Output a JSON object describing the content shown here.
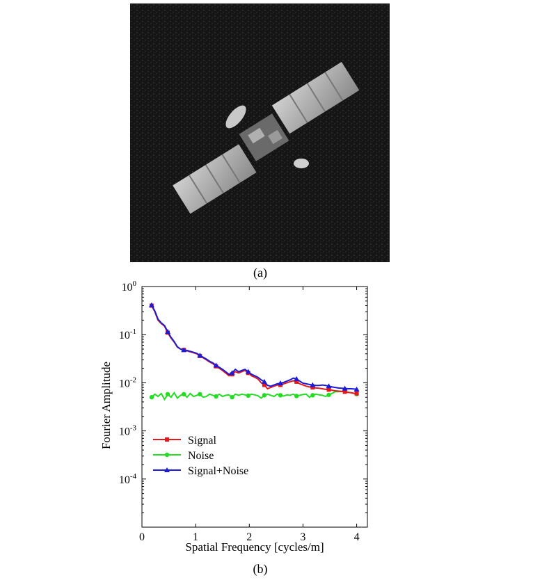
{
  "panel_a": {
    "caption": "(a)",
    "image": {
      "subject": "satellite-radar-image"
    }
  },
  "panel_b": {
    "caption": "(b)"
  },
  "colors": {
    "signal": "#e31a1c",
    "noise": "#22dd22",
    "signal_noise": "#1a1adb",
    "image_background": "#111111"
  },
  "chart_data": {
    "type": "line",
    "title": "",
    "xlabel": "Spatial Frequency [cycles/m]",
    "ylabel": "Fourier Amplitude",
    "xlim": [
      0,
      4.2
    ],
    "ylim": [
      1e-05,
      1
    ],
    "yscale": "log",
    "grid": false,
    "legend_position": "bottom-left",
    "x_ticks": [
      "0",
      "1",
      "2",
      "3",
      "4"
    ],
    "x_tick_values": [
      0,
      1,
      2,
      3,
      4
    ],
    "y_ticks": [
      {
        "base": "10",
        "exp": "0"
      },
      {
        "base": "10",
        "exp": "-1"
      },
      {
        "base": "10",
        "exp": "-2"
      },
      {
        "base": "10",
        "exp": "-3"
      },
      {
        "base": "10",
        "exp": "-4"
      }
    ],
    "y_tick_values": [
      1,
      0.1,
      0.01,
      0.001,
      0.0001
    ],
    "series": [
      {
        "name": "Signal",
        "color": "#e31a1c",
        "marker": "square",
        "x": [
          0.18,
          0.24,
          0.3,
          0.36,
          0.42,
          0.48,
          0.54,
          0.6,
          0.66,
          0.72,
          0.78,
          0.84,
          0.9,
          0.96,
          1.02,
          1.08,
          1.14,
          1.2,
          1.26,
          1.32,
          1.38,
          1.44,
          1.5,
          1.56,
          1.62,
          1.68,
          1.74,
          1.8,
          1.86,
          1.92,
          1.98,
          2.04,
          2.1,
          2.16,
          2.22,
          2.28,
          2.34,
          2.4,
          2.46,
          2.52,
          2.58,
          2.64,
          2.7,
          2.76,
          2.82,
          2.88,
          2.94,
          3.0,
          3.06,
          3.12,
          3.18,
          3.24,
          3.3,
          3.36,
          3.42,
          3.48,
          3.54,
          3.6,
          3.66,
          3.72,
          3.78,
          3.84,
          3.9,
          3.96,
          4.0
        ],
        "y": [
          0.4,
          0.3,
          0.2,
          0.17,
          0.15,
          0.11,
          0.085,
          0.07,
          0.055,
          0.05,
          0.048,
          0.046,
          0.044,
          0.042,
          0.04,
          0.036,
          0.033,
          0.03,
          0.027,
          0.025,
          0.022,
          0.02,
          0.018,
          0.016,
          0.014,
          0.015,
          0.017,
          0.016,
          0.017,
          0.018,
          0.016,
          0.014,
          0.013,
          0.012,
          0.01,
          0.009,
          0.0075,
          0.008,
          0.0085,
          0.009,
          0.009,
          0.0095,
          0.01,
          0.0105,
          0.011,
          0.0105,
          0.0095,
          0.009,
          0.0085,
          0.0082,
          0.008,
          0.0078,
          0.0077,
          0.0075,
          0.0073,
          0.0072,
          0.007,
          0.0068,
          0.0067,
          0.0066,
          0.0065,
          0.0063,
          0.0062,
          0.006,
          0.006
        ]
      },
      {
        "name": "Noise",
        "color": "#22dd22",
        "marker": "circle",
        "x": [
          0.18,
          0.24,
          0.3,
          0.36,
          0.42,
          0.48,
          0.54,
          0.6,
          0.66,
          0.72,
          0.78,
          0.84,
          0.9,
          0.96,
          1.02,
          1.08,
          1.14,
          1.2,
          1.26,
          1.32,
          1.38,
          1.44,
          1.5,
          1.56,
          1.62,
          1.68,
          1.74,
          1.8,
          1.86,
          1.92,
          1.98,
          2.04,
          2.1,
          2.16,
          2.22,
          2.28,
          2.34,
          2.4,
          2.46,
          2.52,
          2.58,
          2.64,
          2.7,
          2.76,
          2.82,
          2.88,
          2.94,
          3.0,
          3.06,
          3.12,
          3.18,
          3.24,
          3.3,
          3.36,
          3.42,
          3.48,
          3.54,
          3.6,
          3.66,
          3.72,
          3.78,
          3.84,
          3.9,
          3.96,
          4.0
        ],
        "y": [
          0.005,
          0.0058,
          0.0052,
          0.006,
          0.0045,
          0.0058,
          0.005,
          0.0062,
          0.0048,
          0.0055,
          0.0058,
          0.005,
          0.006,
          0.0052,
          0.0055,
          0.0058,
          0.005,
          0.0052,
          0.0058,
          0.0055,
          0.0052,
          0.0058,
          0.0052,
          0.0055,
          0.0056,
          0.005,
          0.0058,
          0.0055,
          0.0058,
          0.0056,
          0.0054,
          0.0058,
          0.0056,
          0.0054,
          0.0048,
          0.0055,
          0.0058,
          0.0055,
          0.0052,
          0.0058,
          0.0055,
          0.0053,
          0.0056,
          0.0055,
          0.0058,
          0.0053,
          0.0055,
          0.0057,
          0.0058,
          0.005,
          0.0055,
          0.0058,
          0.0056,
          0.0055,
          0.0052,
          0.0056,
          0.006,
          0.0065,
          0.0065,
          0.0066,
          0.0066,
          0.0064,
          0.0062,
          0.006,
          0.0058
        ]
      },
      {
        "name": "Signal+Noise",
        "color": "#1a1adb",
        "marker": "triangle",
        "x": [
          0.18,
          0.24,
          0.3,
          0.36,
          0.42,
          0.48,
          0.54,
          0.6,
          0.66,
          0.72,
          0.78,
          0.84,
          0.9,
          0.96,
          1.02,
          1.08,
          1.14,
          1.2,
          1.26,
          1.32,
          1.38,
          1.44,
          1.5,
          1.56,
          1.62,
          1.68,
          1.74,
          1.8,
          1.86,
          1.92,
          1.98,
          2.04,
          2.1,
          2.16,
          2.22,
          2.28,
          2.34,
          2.4,
          2.46,
          2.52,
          2.58,
          2.64,
          2.7,
          2.76,
          2.82,
          2.88,
          2.94,
          3.0,
          3.06,
          3.12,
          3.18,
          3.24,
          3.3,
          3.36,
          3.42,
          3.48,
          3.54,
          3.6,
          3.66,
          3.72,
          3.78,
          3.84,
          3.9,
          3.96,
          4.0
        ],
        "y": [
          0.41,
          0.31,
          0.21,
          0.175,
          0.155,
          0.115,
          0.088,
          0.072,
          0.056,
          0.05,
          0.048,
          0.047,
          0.045,
          0.043,
          0.041,
          0.037,
          0.034,
          0.031,
          0.028,
          0.026,
          0.023,
          0.021,
          0.019,
          0.017,
          0.015,
          0.016,
          0.019,
          0.017,
          0.018,
          0.019,
          0.017,
          0.015,
          0.014,
          0.013,
          0.0115,
          0.0105,
          0.0088,
          0.0085,
          0.009,
          0.0095,
          0.0098,
          0.0102,
          0.0108,
          0.0115,
          0.0125,
          0.012,
          0.0108,
          0.0098,
          0.0095,
          0.0092,
          0.009,
          0.0088,
          0.0088,
          0.009,
          0.0088,
          0.0085,
          0.0082,
          0.008,
          0.0078,
          0.0077,
          0.0076,
          0.0075,
          0.0075,
          0.0074,
          0.0073
        ]
      }
    ]
  }
}
